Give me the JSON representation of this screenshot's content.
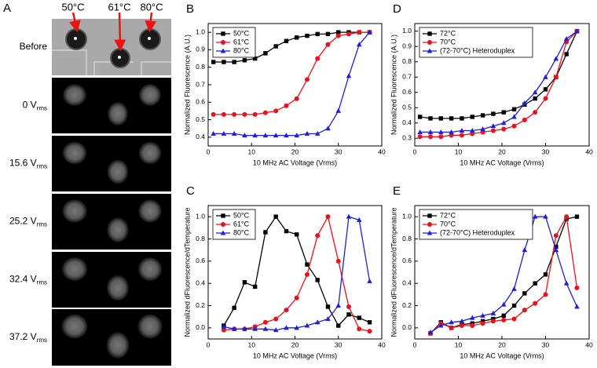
{
  "panel_a": {
    "letter": "A",
    "temperatures": [
      "50°C",
      "61°C",
      "80°C"
    ],
    "rows": [
      {
        "label": "Before"
      },
      {
        "label": "0 V",
        "subscript": "rms"
      },
      {
        "label": "15.6 V",
        "subscript": "rms"
      },
      {
        "label": "25.2 V",
        "subscript": "rms"
      },
      {
        "label": "32.4 V",
        "subscript": "rms"
      },
      {
        "label": "37.2 V",
        "subscript": "rms"
      }
    ]
  },
  "chart_data": [
    {
      "type": "line",
      "panel": "B",
      "x_label": "10 MHz AC Voltage (Vrms)",
      "y_label": "Normalized Fluorescence (A.U.)",
      "x": [
        1.2,
        3.6,
        6,
        8.4,
        10.8,
        13.2,
        15.6,
        18,
        20.4,
        22.8,
        25.2,
        27.6,
        30,
        32.4,
        34.8,
        37.2
      ],
      "xlim": [
        0,
        40
      ],
      "xticks": [
        0,
        10,
        20,
        30,
        40
      ],
      "ylim": [
        0.35,
        1.05
      ],
      "yticks": [
        0.4,
        0.5,
        0.6,
        0.7,
        0.8,
        0.9,
        {
          "value": 1,
          "label": "1.0"
        }
      ],
      "legend": "upper left",
      "series": [
        {
          "name": "50°C",
          "color": "#000000",
          "marker": "square",
          "values": [
            0.83,
            0.83,
            0.83,
            0.84,
            0.85,
            0.88,
            0.92,
            0.95,
            0.97,
            0.98,
            0.99,
            0.99,
            1.0,
            1.0,
            1.0,
            1.0
          ]
        },
        {
          "name": "61°C",
          "color": "#e8121c",
          "marker": "circle",
          "values": [
            0.53,
            0.53,
            0.53,
            0.53,
            0.53,
            0.54,
            0.55,
            0.58,
            0.62,
            0.73,
            0.85,
            0.93,
            0.98,
            0.99,
            1.0,
            1.0
          ]
        },
        {
          "name": "80°C",
          "color": "#1f1fd6",
          "marker": "triangle",
          "values": [
            0.42,
            0.42,
            0.42,
            0.41,
            0.41,
            0.41,
            0.41,
            0.41,
            0.41,
            0.42,
            0.42,
            0.45,
            0.55,
            0.75,
            0.93,
            1.0
          ]
        }
      ]
    },
    {
      "type": "line",
      "panel": "C",
      "x_label": "10 MHz AC Voltage (Vrms)",
      "y_label": "Normalized dFluorescence/dTemperature",
      "x": [
        3.6,
        6,
        8.4,
        10.8,
        13.2,
        15.6,
        18,
        20.4,
        22.8,
        25.2,
        27.6,
        30,
        32.4,
        34.8,
        37.2
      ],
      "xlim": [
        0,
        40
      ],
      "xticks": [
        0,
        10,
        20,
        30,
        40
      ],
      "ylim": [
        -0.1,
        1.1
      ],
      "yticks": [
        {
          "value": 0,
          "label": "0.0"
        },
        0.2,
        0.4,
        0.6,
        0.8,
        {
          "value": 1,
          "label": "1.0"
        }
      ],
      "legend": "upper left",
      "series": [
        {
          "name": "50°C",
          "color": "#000000",
          "marker": "square",
          "values": [
            0.02,
            0.18,
            0.41,
            0.37,
            0.86,
            1.0,
            0.87,
            0.84,
            0.57,
            0.43,
            0.19,
            0.02,
            0.12,
            0.09,
            0.05
          ]
        },
        {
          "name": "61°C",
          "color": "#e8121c",
          "marker": "circle",
          "values": [
            -0.02,
            -0.01,
            -0.01,
            0.01,
            0.05,
            0.08,
            0.16,
            0.27,
            0.48,
            0.83,
            1.0,
            0.6,
            0.19,
            -0.01,
            -0.03
          ]
        },
        {
          "name": "80°C",
          "color": "#1f1fd6",
          "marker": "triangle",
          "values": [
            0.01,
            -0.01,
            -0.01,
            -0.01,
            -0.01,
            -0.02,
            0.0,
            0.0,
            0.02,
            0.05,
            0.08,
            0.2,
            1.0,
            0.97,
            0.42
          ]
        }
      ]
    },
    {
      "type": "line",
      "panel": "D",
      "x_label": "10 MHz AC Voltage (Vrms)",
      "y_label": "Normalized Fluorescence (A.U.)",
      "x": [
        1.2,
        3.6,
        6,
        8.4,
        10.8,
        13.2,
        15.6,
        18,
        20.4,
        22.8,
        25.2,
        27.6,
        30,
        32.4,
        34.8,
        37.2
      ],
      "xlim": [
        0,
        40
      ],
      "xticks": [
        0,
        10,
        20,
        30,
        40
      ],
      "ylim": [
        0.25,
        1.05
      ],
      "yticks": [
        0.3,
        0.4,
        0.5,
        0.6,
        0.7,
        0.8,
        0.9,
        {
          "value": 1,
          "label": "1.0"
        }
      ],
      "legend": "upper left",
      "series": [
        {
          "name": "72°C",
          "color": "#000000",
          "marker": "square",
          "values": [
            0.44,
            0.43,
            0.43,
            0.43,
            0.43,
            0.44,
            0.45,
            0.46,
            0.47,
            0.49,
            0.52,
            0.56,
            0.62,
            0.7,
            0.85,
            1.0
          ]
        },
        {
          "name": "70°C",
          "color": "#e8121c",
          "marker": "circle",
          "values": [
            0.31,
            0.31,
            0.31,
            0.32,
            0.32,
            0.33,
            0.34,
            0.35,
            0.36,
            0.38,
            0.42,
            0.47,
            0.56,
            0.7,
            0.93,
            1.0
          ]
        },
        {
          "name": "(72-70°C) Heteroduplex",
          "color": "#1f1fd6",
          "marker": "triangle",
          "values": [
            0.34,
            0.34,
            0.34,
            0.34,
            0.35,
            0.35,
            0.36,
            0.38,
            0.4,
            0.44,
            0.53,
            0.6,
            0.7,
            0.82,
            0.95,
            1.0
          ]
        }
      ]
    },
    {
      "type": "line",
      "panel": "E",
      "x_label": "10 MHz AC Voltage (Vrms)",
      "y_label": "Normalized dFluorescence/dTemperature",
      "x": [
        3.6,
        6,
        8.4,
        10.8,
        13.2,
        15.6,
        18,
        20.4,
        22.8,
        25.2,
        27.6,
        30,
        32.4,
        34.8,
        37.2
      ],
      "xlim": [
        0,
        40
      ],
      "xticks": [
        0,
        10,
        20,
        30,
        40
      ],
      "ylim": [
        -0.1,
        1.1
      ],
      "yticks": [
        {
          "value": 0,
          "label": "0.0"
        },
        0.2,
        0.4,
        0.6,
        0.8,
        {
          "value": 1,
          "label": "1.0"
        }
      ],
      "legend": "upper left",
      "series": [
        {
          "name": "72°C",
          "color": "#000000",
          "marker": "square",
          "values": [
            -0.05,
            0.05,
            0.0,
            0.03,
            0.04,
            0.06,
            0.08,
            0.11,
            0.2,
            0.31,
            0.4,
            0.48,
            0.73,
            0.98,
            1.0
          ]
        },
        {
          "name": "70°C",
          "color": "#e8121c",
          "marker": "circle",
          "values": [
            -0.05,
            0.04,
            0.0,
            0.02,
            0.02,
            0.04,
            0.06,
            0.07,
            0.08,
            0.16,
            0.22,
            0.3,
            0.83,
            1.0,
            0.36
          ]
        },
        {
          "name": "(72-70°C) Heteroduplex",
          "color": "#1f1fd6",
          "marker": "triangle",
          "values": [
            -0.04,
            0.02,
            0.05,
            0.06,
            0.09,
            0.11,
            0.13,
            0.21,
            0.35,
            0.7,
            1.0,
            1.0,
            0.7,
            0.4,
            0.19
          ]
        }
      ]
    }
  ]
}
